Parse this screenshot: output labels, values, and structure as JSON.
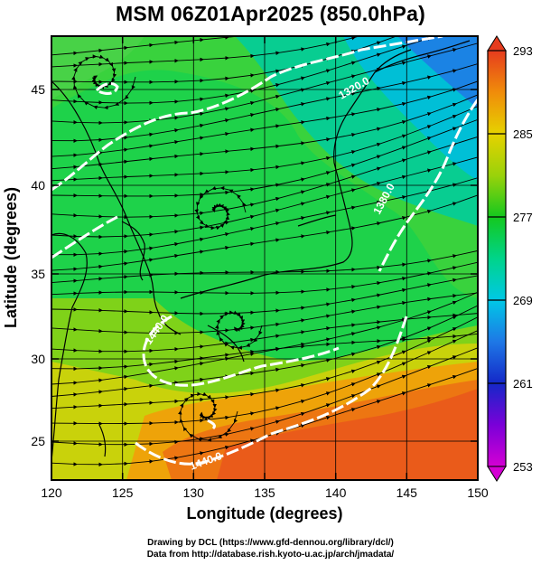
{
  "title": "MSM 06Z01Apr2025 (850.0hPa)",
  "xaxis": {
    "label": "Longitude (degrees)",
    "ticks": [
      "120",
      "125",
      "130",
      "135",
      "140",
      "145",
      "150"
    ],
    "range": [
      120,
      150
    ]
  },
  "yaxis": {
    "label": "Latitude  (degrees)",
    "ticks": [
      "25",
      "30",
      "35",
      "40",
      "45"
    ],
    "range": [
      22.5,
      47.5
    ]
  },
  "colorbar": {
    "range": [
      253,
      293
    ],
    "labels": [
      "293",
      "285",
      "277",
      "269",
      "261",
      "253"
    ],
    "colors": [
      "#d400d4",
      "#7a00d8",
      "#1428c8",
      "#1e78e6",
      "#00c8e6",
      "#00d48a",
      "#14c81e",
      "#9ad20a",
      "#e6d200",
      "#f08c0a",
      "#e63c1e"
    ]
  },
  "contours": [
    {
      "label": "1320.0"
    },
    {
      "label": "1380.0"
    },
    {
      "label": "1440.0"
    },
    {
      "label": "1440.0"
    }
  ],
  "footer": {
    "line1": "Drawing by DCL (https://www.gfd-dennou.org/library/dcl/)",
    "line2": "Data from http://database.rish.kyoto-u.ac.jp/arch/jmadata/"
  }
}
